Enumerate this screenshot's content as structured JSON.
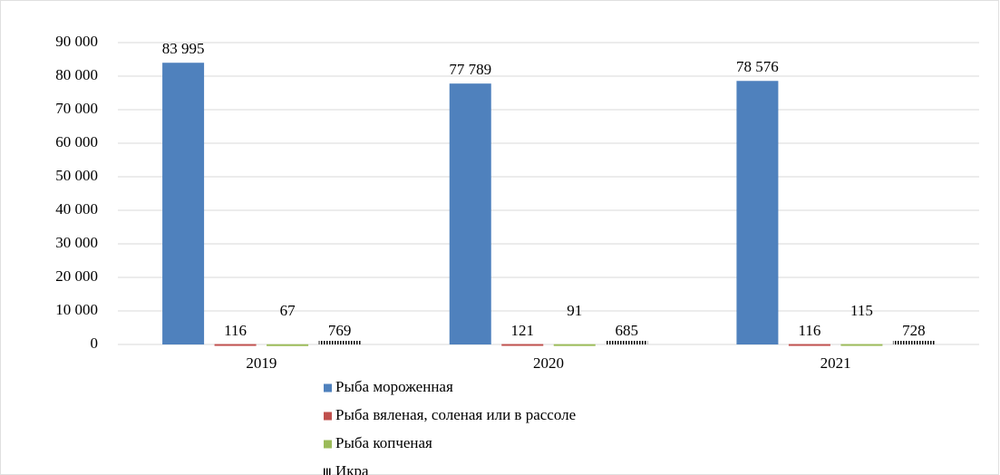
{
  "chart_data": {
    "type": "bar",
    "categories": [
      "2019",
      "2020",
      "2021"
    ],
    "series": [
      {
        "name": "Рыба мороженная",
        "color": "#4f81bd",
        "values": [
          83995,
          77789,
          78576
        ],
        "value_labels": [
          "83 995",
          "77 789",
          "78 576"
        ]
      },
      {
        "name": "Рыба вяленая, соленая или в рассоле",
        "color": "#c0504d",
        "values": [
          116,
          121,
          116
        ]
      },
      {
        "name": "Рыба копченая",
        "color": "#9bbb59",
        "values": [
          67,
          91,
          115
        ]
      },
      {
        "name": "Икра",
        "color": "#000000",
        "hatch": "vertical",
        "values": [
          769,
          685,
          728
        ]
      }
    ],
    "ylim": [
      0,
      90000
    ],
    "yticks": [
      {
        "value": 0,
        "label": "0"
      },
      {
        "value": 10000,
        "label": "10 000"
      },
      {
        "value": 20000,
        "label": "20 000"
      },
      {
        "value": 30000,
        "label": "30 000"
      },
      {
        "value": 40000,
        "label": "40 000"
      },
      {
        "value": 50000,
        "label": "50 000"
      },
      {
        "value": 60000,
        "label": "60 000"
      },
      {
        "value": 70000,
        "label": "70 000"
      },
      {
        "value": 80000,
        "label": "80 000"
      },
      {
        "value": 90000,
        "label": "90 000"
      }
    ],
    "grid": true,
    "legend": "bottom"
  }
}
